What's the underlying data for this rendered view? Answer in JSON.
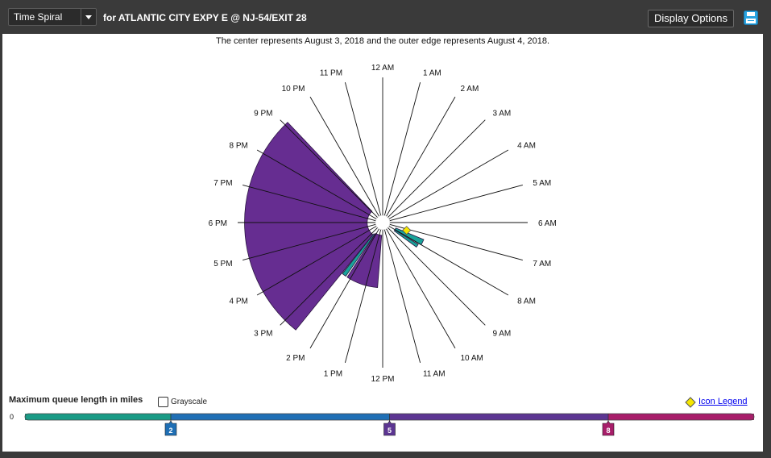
{
  "toolbar": {
    "view_select": "Time Spiral",
    "location": "for ATLANTIC CITY EXPY E @ NJ-54/EXIT 28",
    "display_options": "Display Options"
  },
  "caption": "The center represents August 3, 2018 and the outer edge represents August 4, 2018.",
  "legend": {
    "title": "Maximum queue length in miles",
    "grayscale_label": "Grayscale",
    "icon_legend_label": "Icon Legend",
    "scale_zero": "0",
    "markers": [
      {
        "label": "2",
        "value": 2,
        "color": "#1f6fb5"
      },
      {
        "label": "5",
        "value": 5,
        "color": "#5c3592"
      },
      {
        "label": "8",
        "value": 8,
        "color": "#a81e6a"
      }
    ],
    "bands": [
      {
        "from": 0,
        "to": 2,
        "color": "#1a9b86"
      },
      {
        "from": 2,
        "to": 5,
        "color": "#1f6fb5"
      },
      {
        "from": 5,
        "to": 8,
        "color": "#5c3592"
      },
      {
        "from": 8,
        "to": 10,
        "color": "#a81e6a"
      }
    ],
    "scale_max": 10
  },
  "chart_data": {
    "type": "time_spiral",
    "title": "The center represents August 3, 2018 and the outer edge represents August 4, 2018.",
    "hour_labels": [
      "12 AM",
      "1 AM",
      "2 AM",
      "3 AM",
      "4 AM",
      "5 AM",
      "6 AM",
      "7 AM",
      "8 AM",
      "9 AM",
      "10 AM",
      "11 AM",
      "12 PM",
      "1 PM",
      "2 PM",
      "3 PM",
      "4 PM",
      "5 PM",
      "6 PM",
      "7 PM",
      "8 PM",
      "9 PM",
      "10 PM",
      "11 PM"
    ],
    "radial_axis": {
      "center": "August 3, 2018",
      "outer": "August 4, 2018"
    },
    "queues": [
      {
        "start_hour": 12.3,
        "end_hour": 14.2,
        "day_position_start": 0.04,
        "day_position_end": 0.42,
        "max_queue_miles": 5.5,
        "color": "#662d91"
      },
      {
        "start_hour": 14.3,
        "end_hour": 14.55,
        "day_position_start": 0.05,
        "day_position_end": 0.42,
        "max_queue_miles": 1.5,
        "color": "#19a39a"
      },
      {
        "start_hour": 14.6,
        "end_hour": 21.1,
        "day_position_start": 0.06,
        "day_position_end": 0.95,
        "max_queue_miles": 6.2,
        "color": "#662d91"
      },
      {
        "start_hour": 7.5,
        "end_hour": 8.0,
        "day_position_start": 0.05,
        "day_position_end": 0.27,
        "max_queue_miles": 1.2,
        "color": "#19a39a"
      },
      {
        "start_hour": 8.1,
        "end_hour": 8.4,
        "day_position_start": 0.05,
        "day_position_end": 0.25,
        "max_queue_miles": 1.0,
        "color": "#19a39a"
      }
    ],
    "events": [
      {
        "hour": 7.2,
        "day_position": 0.13,
        "icon": "diamond",
        "color": "#f5e600"
      }
    ]
  }
}
